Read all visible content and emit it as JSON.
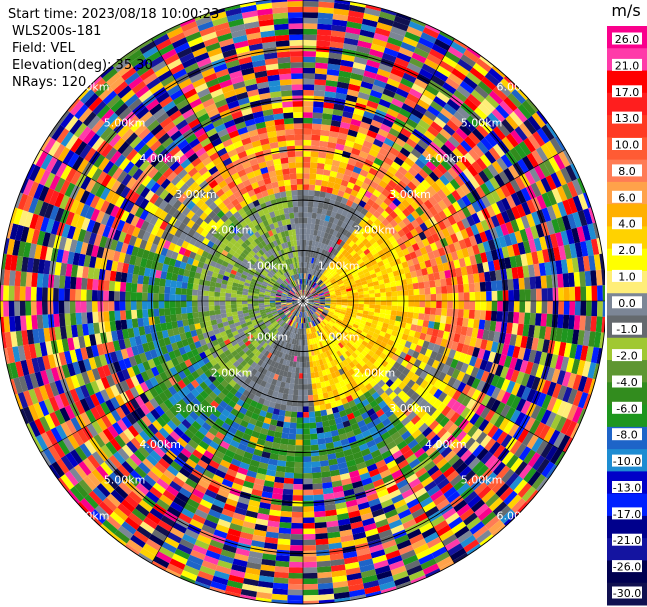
{
  "header": {
    "start_time": "Start time: 2023/08/18 10:00:23",
    "instrument": "WLS200s-181",
    "field": "Field: VEL",
    "elevation": "Elevation(deg): 35.30",
    "nrays": "NRays: 120"
  },
  "chart_data": {
    "type": "heatmap",
    "projection": "polar-ppi",
    "field": "VEL",
    "units": "m/s",
    "nrays": 120,
    "elevation_deg": 35.3,
    "max_range_km": 6.0,
    "range_rings_km": [
      1.0,
      2.0,
      3.0,
      4.0,
      5.0,
      6.0
    ],
    "ring_labels": [
      "1.00km",
      "2.00km",
      "3.00km",
      "4.00km",
      "5.00km",
      "6.00km"
    ],
    "grid": true,
    "colorbar": {
      "placement": "right",
      "unit_label": "m/s",
      "ticks": [
        "26.0",
        "21.0",
        "17.0",
        "13.0",
        "10.0",
        "8.0",
        "6.0",
        "4.0",
        "2.0",
        "1.0",
        "0.0",
        "-1.0",
        "-2.0",
        "-4.0",
        "-6.0",
        "-8.0",
        "-10.0",
        "-13.0",
        "-17.0",
        "-21.0",
        "-26.0",
        "-30.0"
      ],
      "colors": [
        "#fa008c",
        "#ff3aa9",
        "#ff0000",
        "#ff1e1e",
        "#ff3a22",
        "#ff5b34",
        "#ff7c55",
        "#ffa24a",
        "#ffb000",
        "#ffd200",
        "#ffff00",
        "#ffee78",
        "#7c8696",
        "#656a6e",
        "#a0c832",
        "#5e9632",
        "#328c1e",
        "#1e961e",
        "#1e64c8",
        "#1e8cd2",
        "#0000c8",
        "#0020ff",
        "#00008c",
        "#1414a0",
        "#000050",
        "#101050"
      ]
    },
    "regions": [
      {
        "from_km": 0.0,
        "to_km": 0.5,
        "pattern": "centre",
        "desc": "near-zero and mixed velocities at centre"
      },
      {
        "from_km": 0.5,
        "to_km": 2.2,
        "pattern": "dipole",
        "positive_side": "east",
        "negative_side": "west-southwest"
      },
      {
        "from_km": 2.2,
        "to_km": 3.5,
        "pattern": "dipole-outer",
        "positive_side": "north-northeast",
        "negative_side": "south-southwest"
      },
      {
        "from_km": 3.5,
        "to_km": 6.0,
        "pattern": "noise",
        "desc": "random velocities beyond signal range"
      }
    ]
  }
}
